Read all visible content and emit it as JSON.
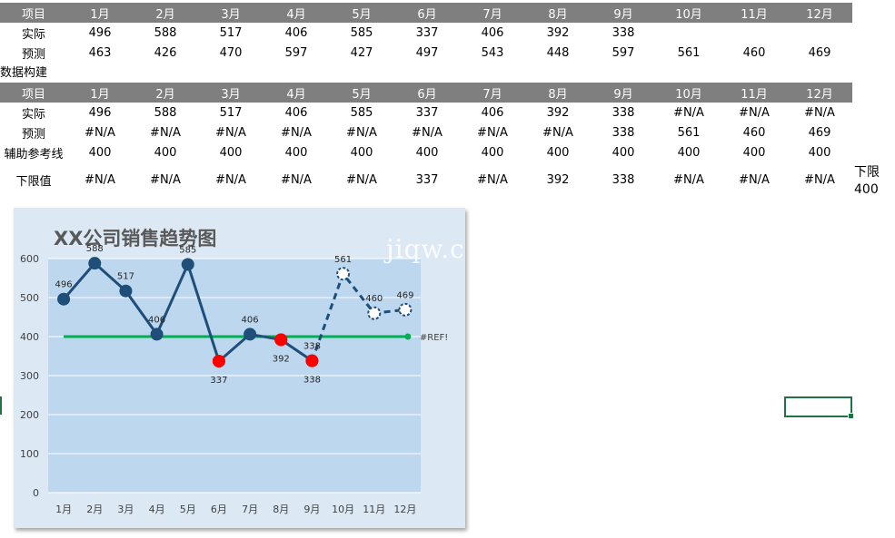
{
  "source_table": {
    "header": [
      "项目",
      "1月",
      "2月",
      "3月",
      "4月",
      "5月",
      "6月",
      "7月",
      "8月",
      "9月",
      "10月",
      "11月",
      "12月"
    ],
    "rows": [
      [
        "实际",
        "496",
        "588",
        "517",
        "406",
        "585",
        "337",
        "406",
        "392",
        "338",
        "",
        "",
        ""
      ],
      [
        "预测",
        "463",
        "426",
        "470",
        "597",
        "427",
        "497",
        "543",
        "448",
        "597",
        "561",
        "460",
        "469"
      ]
    ]
  },
  "section_label": "数据构建",
  "build_table": {
    "header": [
      "项目",
      "1月",
      "2月",
      "3月",
      "4月",
      "5月",
      "6月",
      "7月",
      "8月",
      "9月",
      "10月",
      "11月",
      "12月"
    ],
    "rows": [
      [
        "实际",
        "496",
        "588",
        "517",
        "406",
        "585",
        "337",
        "406",
        "392",
        "338",
        "#N/A",
        "#N/A",
        "#N/A"
      ],
      [
        "预测",
        "#N/A",
        "#N/A",
        "#N/A",
        "#N/A",
        "#N/A",
        "#N/A",
        "#N/A",
        "#N/A",
        "338",
        "561",
        "460",
        "469"
      ],
      [
        "辅助参考线",
        "400",
        "400",
        "400",
        "400",
        "400",
        "400",
        "400",
        "400",
        "400",
        "400",
        "400",
        "400"
      ],
      [
        "下限值",
        "#N/A",
        "#N/A",
        "#N/A",
        "#N/A",
        "#N/A",
        "337",
        "#N/A",
        "392",
        "338",
        "#N/A",
        "#N/A",
        "#N/A"
      ]
    ]
  },
  "side_note": {
    "label": "下限",
    "value": "400"
  },
  "watermark": "jiqw.c",
  "chart_data": {
    "type": "line",
    "title": "XX公司销售趋势图",
    "categories": [
      "1月",
      "2月",
      "3月",
      "4月",
      "5月",
      "6月",
      "7月",
      "8月",
      "9月",
      "10月",
      "11月",
      "12月"
    ],
    "ylim": [
      0,
      600
    ],
    "yticks": [
      0,
      100,
      200,
      300,
      400,
      500,
      600
    ],
    "grid": true,
    "series": [
      {
        "values": [
          496,
          588,
          517,
          406,
          585,
          337,
          406,
          392,
          338,
          null,
          null,
          null
        ],
        "style": "solid",
        "color": "#1f4e79"
      },
      {
        "values": [
          null,
          null,
          null,
          null,
          null,
          null,
          null,
          null,
          338,
          561,
          460,
          469
        ],
        "style": "dashed",
        "color": "#1f4e79"
      },
      {
        "values": [
          400,
          400,
          400,
          400,
          400,
          400,
          400,
          400,
          400,
          400,
          400,
          400
        ],
        "style": "reference",
        "color": "#00b050"
      },
      {
        "values": [
          null,
          null,
          null,
          null,
          null,
          337,
          null,
          392,
          338,
          null,
          null,
          null
        ],
        "style": "markers",
        "color": "#ff0000"
      }
    ],
    "data_labels": [
      {
        "text": "496"
      },
      {
        "text": "588"
      },
      {
        "text": "517"
      },
      {
        "text": "406"
      },
      {
        "text": "585"
      },
      {
        "text": "337"
      },
      {
        "text": "406"
      },
      {
        "text": "392"
      },
      {
        "text": "338"
      },
      {
        "text": "561"
      },
      {
        "text": "460"
      },
      {
        "text": "469"
      }
    ],
    "reference_label": "#REF!"
  }
}
